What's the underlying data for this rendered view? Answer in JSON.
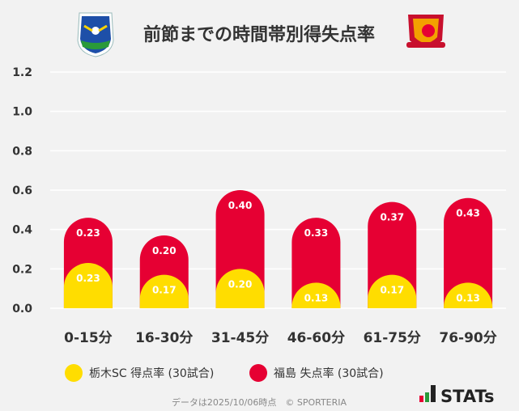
{
  "chart_data": {
    "type": "bar",
    "stacked": true,
    "title": "前節までの時間帯別得失点率",
    "categories": [
      "0-15分",
      "16-30分",
      "31-45分",
      "46-60分",
      "61-75分",
      "76-90分"
    ],
    "series": [
      {
        "name": "栃木SC 得点率 (30試合)",
        "color": "#ffdd00",
        "values": [
          0.23,
          0.17,
          0.2,
          0.13,
          0.17,
          0.13
        ]
      },
      {
        "name": "福島 失点率 (30試合)",
        "color": "#e60033",
        "values": [
          0.23,
          0.2,
          0.4,
          0.33,
          0.37,
          0.43
        ]
      }
    ],
    "ylim": [
      0,
      1.2
    ],
    "yticks": [
      "0.0",
      "0.2",
      "0.4",
      "0.6",
      "0.8",
      "1.0",
      "1.2"
    ],
    "grid": true,
    "legend": "bottom"
  },
  "logos": {
    "home": "栃木SC",
    "away": "FUKUSHIMA UNITED FC"
  },
  "footer": {
    "note": "データは2025/10/06時点　© SPORTERIA",
    "brand": "STATs"
  },
  "colors": {
    "background": "#f2f2f2",
    "grid": "#ffffff",
    "text": "#333333"
  }
}
